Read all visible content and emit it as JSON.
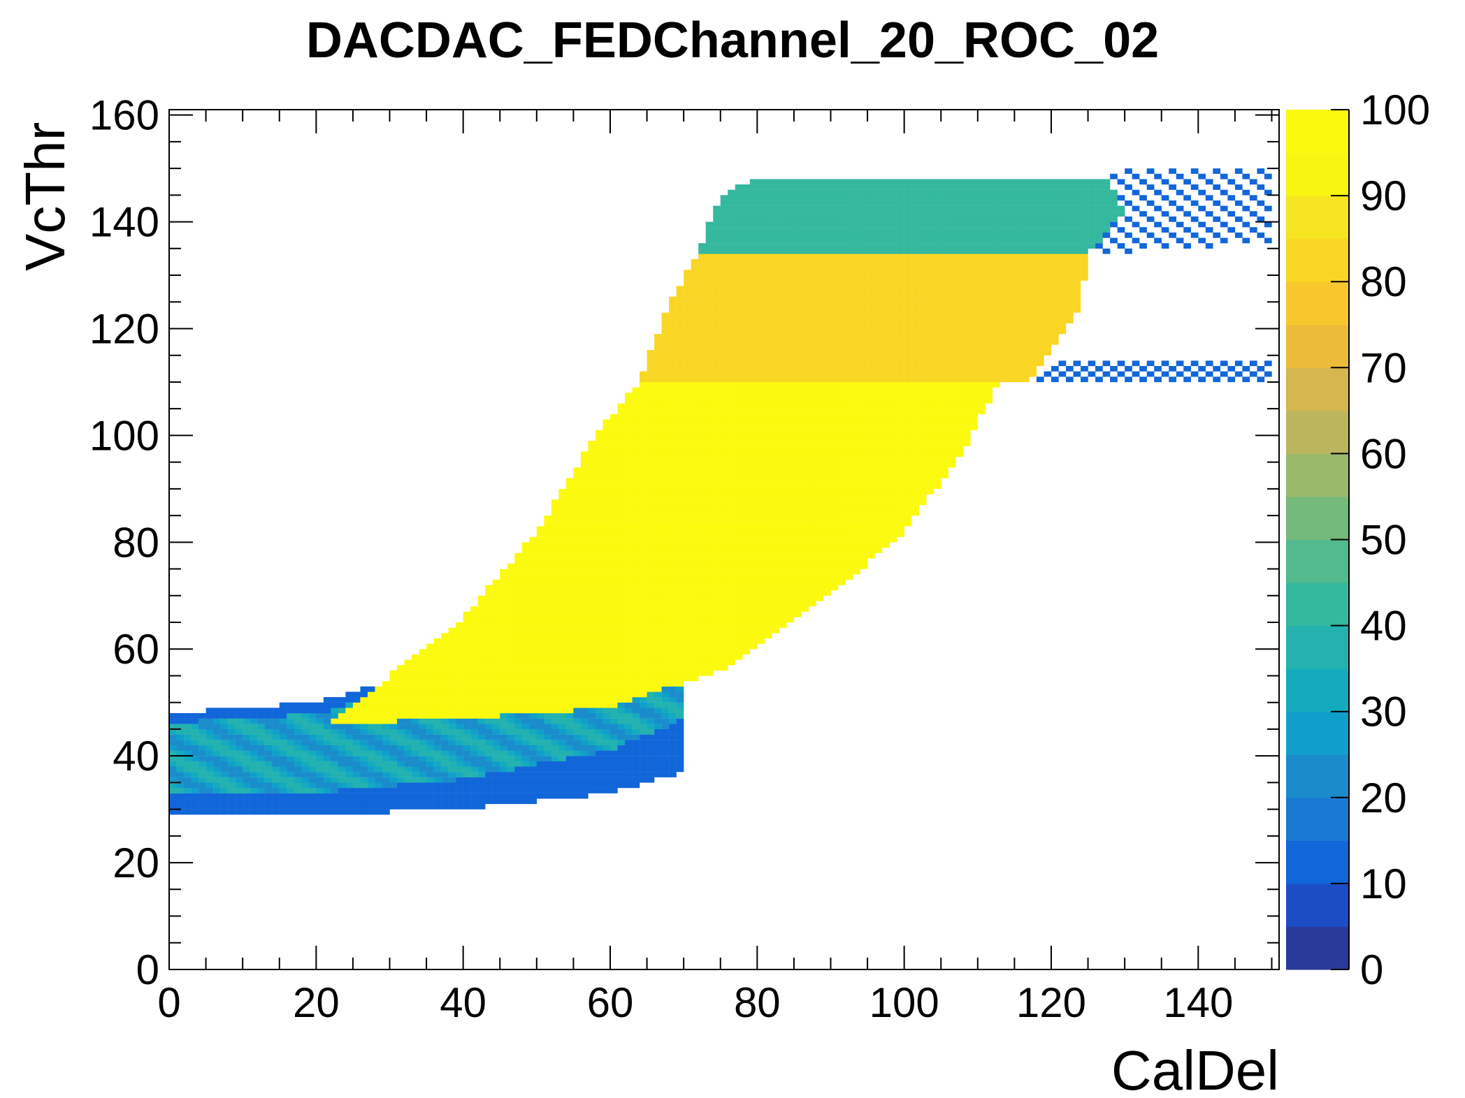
{
  "chart_data": {
    "type": "heatmap",
    "title": "DACDAC_FEDChannel_20_ROC_02",
    "xlabel": "CalDel",
    "ylabel": "VcThr",
    "xlim": [
      0,
      151
    ],
    "ylim": [
      0,
      161
    ],
    "x_ticks": [
      "0",
      "20",
      "40",
      "60",
      "80",
      "100",
      "120",
      "140"
    ],
    "y_ticks": [
      "0",
      "20",
      "40",
      "60",
      "80",
      "100",
      "120",
      "140",
      "160"
    ],
    "zlim": [
      0,
      100
    ],
    "z_ticks": [
      "0",
      "10",
      "20",
      "30",
      "40",
      "50",
      "60",
      "70",
      "80",
      "90",
      "100"
    ],
    "palette": [
      "#2a3a9b",
      "#1b4ec5",
      "#1166d9",
      "#1a7ad3",
      "#1a8ccb",
      "#109fcb",
      "#15abbf",
      "#23b2b0",
      "#34b89e",
      "#52ba8c",
      "#74ba7a",
      "#9bb96a",
      "#bbb65e",
      "#d5b64f",
      "#edbb3a",
      "#f8c72b",
      "#fad624",
      "#f6e520",
      "#f8f512",
      "#fbfa0e"
    ],
    "regions": [
      {
        "name": "low-band",
        "xmin": 0,
        "xmax": 70,
        "ymin_curve": [
          [
            0,
            29
          ],
          [
            20,
            29
          ],
          [
            40,
            30
          ],
          [
            60,
            33
          ],
          [
            70,
            37
          ]
        ],
        "ymax_curve": [
          [
            0,
            48
          ],
          [
            20,
            50
          ],
          [
            40,
            58
          ],
          [
            60,
            74
          ],
          [
            70,
            86
          ]
        ],
        "level": 30
      },
      {
        "name": "saturated",
        "polygon": [
          [
            22,
            46
          ],
          [
            40,
            47
          ],
          [
            60,
            49
          ],
          [
            75,
            56
          ],
          [
            90,
            70
          ],
          [
            100,
            82
          ],
          [
            108,
            97
          ],
          [
            113,
            110
          ],
          [
            64,
            110
          ],
          [
            58,
            100
          ],
          [
            50,
            82
          ],
          [
            40,
            66
          ],
          [
            30,
            55
          ]
        ],
        "level": 100
      },
      {
        "name": "orange-band",
        "polygon": [
          [
            64,
            110
          ],
          [
            117,
            110
          ],
          [
            124,
            124
          ],
          [
            125,
            134
          ],
          [
            72,
            134
          ],
          [
            68,
            125
          ]
        ],
        "level": 82
      },
      {
        "name": "teal-band",
        "polygon": [
          [
            72,
            134
          ],
          [
            125,
            134
          ],
          [
            130,
            142
          ],
          [
            128,
            148
          ],
          [
            80,
            148
          ],
          [
            75,
            145
          ]
        ],
        "level": 40
      },
      {
        "name": "upper-tail",
        "polygon": [
          [
            125,
            134
          ],
          [
            150,
            136
          ],
          [
            150,
            150
          ],
          [
            128,
            150
          ]
        ],
        "level": 12
      },
      {
        "name": "right-tail",
        "polygon": [
          [
            117,
            110
          ],
          [
            150,
            110
          ],
          [
            150,
            114
          ],
          [
            120,
            114
          ]
        ],
        "level": 14
      }
    ]
  }
}
